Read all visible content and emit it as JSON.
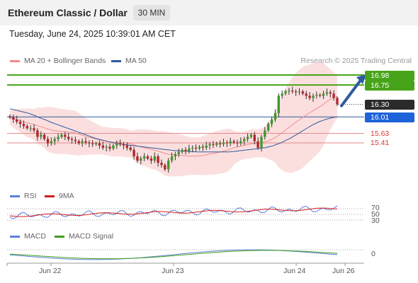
{
  "header": {
    "title": "Ethereum Classic / Dollar",
    "interval": "30 MIN"
  },
  "datetime": "Tuesday, June 24, 2025 10:39:01 AM CET",
  "legend_main": [
    {
      "label": "MA 20 + Bollinger Bands",
      "color": "#f28a8a"
    },
    {
      "label": "MA 50",
      "color": "#2f5a9c"
    }
  ],
  "credit": "Research © 2025 Trading Central",
  "legend_rsi": [
    {
      "label": "RSI",
      "color": "#5a7fd8"
    },
    {
      "label": "9MA",
      "color": "#d61c1c"
    }
  ],
  "legend_macd": [
    {
      "label": "MACD",
      "color": "#5a7fd8"
    },
    {
      "label": "MACD Signal",
      "color": "#3f9e1e"
    }
  ],
  "price_labels": [
    {
      "value": "16.98",
      "color": "#47a41a",
      "style": "box"
    },
    {
      "value": "16.75",
      "color": "#47a41a",
      "style": "box"
    },
    {
      "value": "16.30",
      "color": "#2b2b2b",
      "style": "box"
    },
    {
      "value": "16.01",
      "color": "#1f63d8",
      "style": "box"
    },
    {
      "value": "15.63",
      "color": "#e03535",
      "style": "text"
    },
    {
      "value": "15.41",
      "color": "#e03535",
      "style": "text"
    }
  ],
  "rsi_levels": [
    "70",
    "50",
    "30"
  ],
  "macd_zero": "0",
  "x_labels": [
    "Jun 22",
    "Jun 23",
    "Jun 24",
    "Jun 26"
  ],
  "chart_data": {
    "type": "candlestick",
    "price_range": [
      14.7,
      17.15
    ],
    "levels": {
      "resistance": [
        16.98,
        16.75
      ],
      "current": 16.3,
      "ma50_level": 16.01,
      "support": [
        15.63,
        15.41
      ]
    },
    "target_arrow": {
      "from": 16.3,
      "to": 16.98
    },
    "closes": [
      16.0,
      15.95,
      15.9,
      15.85,
      15.8,
      15.75,
      15.75,
      15.7,
      15.55,
      15.6,
      15.5,
      15.4,
      15.45,
      15.5,
      15.55,
      15.6,
      15.55,
      15.5,
      15.48,
      15.45,
      15.4,
      15.45,
      15.42,
      15.4,
      15.38,
      15.4,
      15.35,
      15.3,
      15.32,
      15.28,
      15.35,
      15.4,
      15.38,
      15.35,
      15.3,
      15.25,
      15.1,
      15.0,
      15.05,
      15.1,
      15.05,
      15.0,
      15.1,
      14.95,
      14.9,
      14.8,
      15.0,
      15.1,
      15.15,
      15.2,
      15.25,
      15.22,
      15.28,
      15.3,
      15.28,
      15.32,
      15.3,
      15.35,
      15.38,
      15.36,
      15.4,
      15.38,
      15.42,
      15.4,
      15.45,
      15.42,
      15.4,
      15.45,
      15.5,
      15.55,
      15.6,
      15.45,
      15.3,
      15.55,
      15.7,
      15.85,
      15.95,
      16.1,
      16.5,
      16.55,
      16.6,
      16.62,
      16.6,
      16.58,
      16.6,
      16.55,
      16.5,
      16.45,
      16.5,
      16.52,
      16.5,
      16.55,
      16.58,
      16.55,
      16.45,
      16.3
    ],
    "ma50": [
      16.2,
      16.18,
      16.16,
      16.14,
      16.12,
      16.1,
      16.07,
      16.04,
      16.0,
      15.97,
      15.94,
      15.9,
      15.87,
      15.84,
      15.81,
      15.78,
      15.75,
      15.72,
      15.69,
      15.66,
      15.63,
      15.6,
      15.57,
      15.54,
      15.51,
      15.49,
      15.47,
      15.45,
      15.43,
      15.41,
      15.39,
      15.38,
      15.37,
      15.36,
      15.35,
      15.34,
      15.33,
      15.32,
      15.31,
      15.3,
      15.29,
      15.28,
      15.27,
      15.26,
      15.25,
      15.24,
      15.23,
      15.23,
      15.22,
      15.22,
      15.21,
      15.21,
      15.2,
      15.2,
      15.2,
      15.2,
      15.2,
      15.2,
      15.2,
      15.2,
      15.2,
      15.2,
      15.21,
      15.22,
      15.23,
      15.24,
      15.25,
      15.26,
      15.27,
      15.28,
      15.29,
      15.3,
      15.32,
      15.34,
      15.37,
      15.4,
      15.44,
      15.48,
      15.52,
      15.57,
      15.62,
      15.67,
      15.72,
      15.77,
      15.82,
      15.86,
      15.9,
      15.93,
      15.96,
      15.98,
      16.0,
      16.01
    ]
  }
}
